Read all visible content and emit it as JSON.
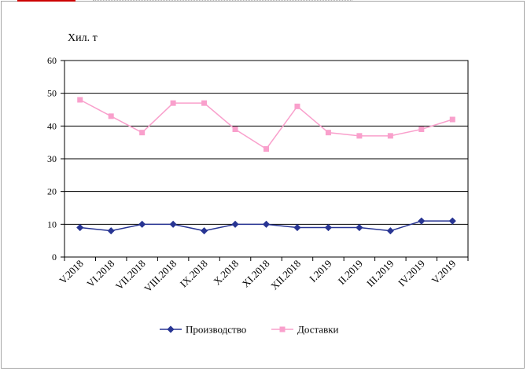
{
  "chart_data": {
    "type": "line",
    "title": "",
    "ylabel": "Хил. т",
    "xlabel": "",
    "ylim": [
      0,
      60
    ],
    "yticks": [
      0,
      10,
      20,
      30,
      40,
      50,
      60
    ],
    "grid": true,
    "legend_position": "bottom",
    "categories": [
      "V.2018",
      "VI.2018",
      "VII.2018",
      "VIII.2018",
      "IX.2018",
      "X.2018",
      "XI.2018",
      "XII.2018",
      "I.2019",
      "II.2019",
      "III.2019",
      "IV.2019",
      "V.2019"
    ],
    "series": [
      {
        "name": "Производство",
        "color": "#283593",
        "marker": "diamond",
        "values": [
          9,
          8,
          10,
          10,
          8,
          10,
          10,
          9,
          9,
          9,
          8,
          11,
          11
        ]
      },
      {
        "name": "Доставки",
        "color": "#f9a0cc",
        "marker": "square",
        "values": [
          48,
          43,
          38,
          47,
          47,
          39,
          33,
          46,
          38,
          37,
          37,
          39,
          42
        ]
      }
    ]
  }
}
